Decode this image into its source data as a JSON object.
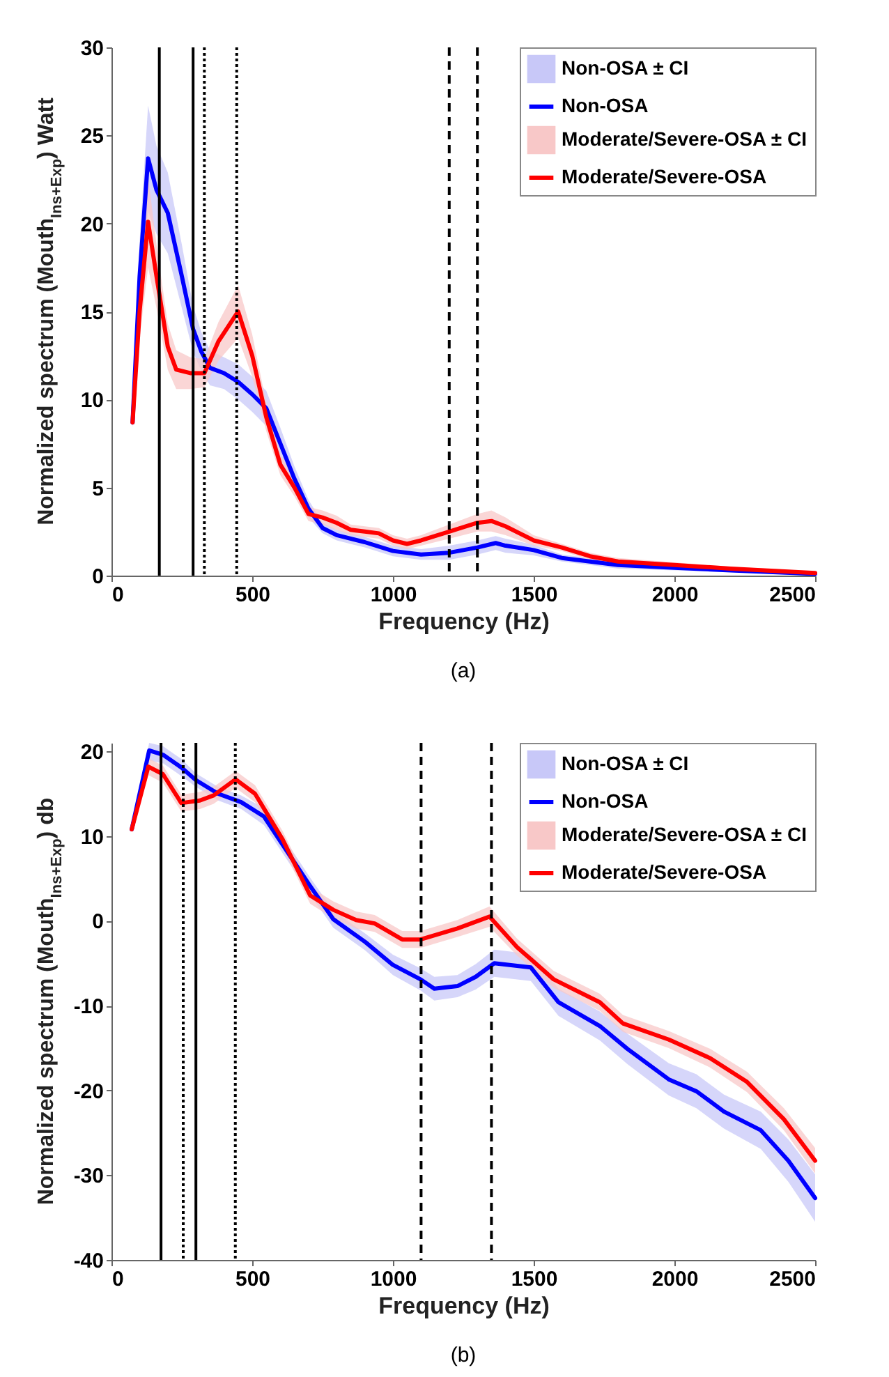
{
  "chart_data": [
    {
      "type": "line",
      "xlabel": "Frequency (Hz)",
      "ylabel": "Normalized spectrum (Mouth$_{Ins+Exp}$) Watt",
      "annotations": [
        "(a)"
      ],
      "xlim": [
        0,
        2500
      ],
      "xticks": [
        0,
        500,
        1000,
        1500,
        2000,
        2500
      ],
      "ylim": [
        0,
        30
      ],
      "yticks": [
        0,
        5,
        10,
        15,
        20,
        25,
        30
      ],
      "grid": false,
      "legend": "top right",
      "series": [
        {
          "name": "Non-OSA ± CI",
          "type": "area",
          "color": "#c8c8f8"
        },
        {
          "name": "Non-OSA",
          "color": "#0000ff",
          "x": [
            75,
            100,
            130,
            160,
            200,
            250,
            290,
            320,
            350,
            400,
            450,
            500,
            550,
            600,
            650,
            700,
            750,
            800,
            900,
            1000,
            1100,
            1200,
            1300,
            1365,
            1400,
            1500,
            1600,
            1700,
            1800,
            2000,
            2200,
            2500
          ],
          "values": [
            8.7,
            17,
            23.7,
            21.9,
            20.6,
            17,
            14,
            12.7,
            11.8,
            11.5,
            11,
            10.3,
            9.5,
            7.5,
            5.5,
            3.8,
            2.7,
            2.3,
            1.9,
            1.4,
            1.2,
            1.3,
            1.6,
            1.85,
            1.7,
            1.45,
            1.0,
            0.8,
            0.6,
            0.45,
            0.3,
            0.1
          ],
          "lower": [
            8.4,
            15,
            20.7,
            19.4,
            18.3,
            15.2,
            12.7,
            11.6,
            10.8,
            10.6,
            10,
            9.3,
            8.5,
            6.6,
            4.8,
            3.3,
            2.4,
            2,
            1.6,
            1.1,
            0.9,
            0.9,
            1.2,
            1.45,
            1.3,
            1.15,
            0.8,
            0.6,
            0.4,
            0.3,
            0.2,
            0
          ],
          "upper": [
            9,
            19,
            26.7,
            24.4,
            22.9,
            18.8,
            15.3,
            13.8,
            12.8,
            12.4,
            12,
            11.3,
            10.5,
            8.4,
            6.2,
            4.3,
            3,
            2.6,
            2.2,
            1.7,
            1.5,
            1.7,
            2,
            2.25,
            2.1,
            1.75,
            1.2,
            1,
            0.8,
            0.6,
            0.4,
            0.2
          ]
        },
        {
          "name": "Moderate/Severe-OSA ± CI",
          "type": "area",
          "color": "#f8c8c8"
        },
        {
          "name": "Moderate/Severe-OSA",
          "color": "#ff0000",
          "x": [
            75,
            100,
            130,
            160,
            200,
            230,
            280,
            330,
            380,
            450,
            500,
            550,
            600,
            650,
            700,
            750,
            800,
            850,
            900,
            950,
            1000,
            1050,
            1100,
            1200,
            1300,
            1350,
            1400,
            1500,
            1600,
            1700,
            1800,
            2000,
            2200,
            2500
          ],
          "values": [
            8.7,
            15,
            20.1,
            17,
            13,
            11.7,
            11.5,
            11.5,
            13.3,
            15,
            12.5,
            9,
            6.3,
            5,
            3.5,
            3.3,
            3,
            2.6,
            2.5,
            2.4,
            2,
            1.8,
            2,
            2.5,
            3,
            3.1,
            2.8,
            2,
            1.6,
            1.1,
            0.8,
            0.6,
            0.4,
            0.15
          ],
          "lower": [
            8.4,
            13.5,
            17.5,
            15.2,
            11.7,
            10.6,
            10.6,
            10.7,
            12.2,
            13.5,
            11.3,
            8.2,
            5.7,
            4.5,
            3.1,
            2.9,
            2.6,
            2.3,
            2.2,
            2.1,
            1.7,
            1.5,
            1.7,
            2.1,
            2.5,
            2.5,
            2.3,
            1.7,
            1.4,
            0.9,
            0.6,
            0.45,
            0.3,
            0.05
          ],
          "upper": [
            9,
            16.5,
            22.7,
            18.8,
            14.3,
            12.8,
            12.4,
            12.3,
            14.4,
            16.5,
            13.7,
            9.8,
            6.9,
            5.5,
            3.9,
            3.7,
            3.4,
            2.9,
            2.8,
            2.7,
            2.3,
            2.1,
            2.3,
            2.9,
            3.5,
            3.7,
            3.3,
            2.3,
            1.8,
            1.3,
            1,
            0.75,
            0.5,
            0.25
          ]
        }
      ],
      "ref_lines": [
        {
          "axis": "x",
          "value": 170,
          "color": "#000000",
          "line_style": "solid"
        },
        {
          "axis": "x",
          "value": 290,
          "color": "#000000",
          "line_style": "solid"
        },
        {
          "axis": "x",
          "value": 330,
          "color": "#000000",
          "line_style": "dotted"
        },
        {
          "axis": "x",
          "value": 445,
          "color": "#000000",
          "line_style": "dotted"
        },
        {
          "axis": "x",
          "value": 1200,
          "color": "#000000",
          "line_style": "dashed"
        },
        {
          "axis": "x",
          "value": 1300,
          "color": "#000000",
          "line_style": "dashed"
        }
      ]
    },
    {
      "type": "line",
      "xlabel": "Frequency (Hz)",
      "ylabel": "Normalized spectrum (Mouth$_{Ins+Exp}$) db",
      "annotations": [
        "(b)"
      ],
      "xlim": [
        0,
        2500
      ],
      "xticks": [
        0,
        500,
        1000,
        1500,
        2000,
        2500
      ],
      "ylim": [
        -40,
        21
      ],
      "yticks": [
        -40,
        -30,
        -20,
        -10,
        0,
        10,
        20
      ],
      "grid": false,
      "legend": "top right",
      "series": [
        {
          "name": "Non-OSA ± CI",
          "type": "area",
          "color": "#c8c8f8"
        },
        {
          "name": "Non-OSA",
          "color": "#0000ff",
          "x": [
            72,
            134,
            183,
            248,
            300,
            379,
            461,
            542,
            608,
            706,
            788,
            902,
            1000,
            1098,
            1147,
            1229,
            1294,
            1360,
            1490,
            1588,
            1735,
            1833,
            1980,
            2078,
            2176,
            2307,
            2405,
            2500
          ],
          "values": [
            10.8,
            20.1,
            19.6,
            18.1,
            16.6,
            15,
            14,
            12.3,
            9,
            4.1,
            0.2,
            -2.5,
            -5.2,
            -6.9,
            -8,
            -7.7,
            -6.6,
            -5,
            -5.5,
            -9.6,
            -12.4,
            -15.1,
            -18.7,
            -20.1,
            -22.5,
            -24.7,
            -28.3,
            -32.7
          ],
          "lower": [
            10.5,
            18.9,
            18.6,
            17.1,
            15.8,
            14.2,
            13.2,
            11.3,
            8,
            3.1,
            -0.8,
            -3.5,
            -6.4,
            -8.2,
            -9.4,
            -9,
            -8.1,
            -6.6,
            -7.1,
            -11.2,
            -14.1,
            -16.9,
            -20.6,
            -22.1,
            -24.5,
            -26.9,
            -30.8,
            -35.5
          ],
          "upper": [
            11.1,
            21,
            20.6,
            19.1,
            17.4,
            15.8,
            14.8,
            13.3,
            10,
            5.1,
            1.2,
            -1.5,
            -4,
            -5.6,
            -6.6,
            -6.4,
            -5.1,
            -3.4,
            -3.9,
            -8,
            -10.7,
            -13.3,
            -16.8,
            -18.1,
            -20.5,
            -22.5,
            -25.8,
            -29.9
          ]
        },
        {
          "name": "Moderate/Severe-OSA ± CI",
          "type": "area",
          "color": "#f8c8c8"
        },
        {
          "name": "Moderate/Severe-OSA",
          "color": "#ff0000",
          "x": [
            72,
            131,
            183,
            248,
            314,
            363,
            441,
            510,
            608,
            706,
            788,
            869,
            935,
            1033,
            1098,
            1229,
            1343,
            1441,
            1571,
            1735,
            1817,
            1980,
            2127,
            2258,
            2389,
            2500
          ],
          "values": [
            10.8,
            18.2,
            17.3,
            13.9,
            14.2,
            14.8,
            16.7,
            15,
            9.6,
            3,
            1.3,
            0.1,
            -0.3,
            -2.2,
            -2.2,
            -0.9,
            0.5,
            -3.1,
            -6.9,
            -9.6,
            -12.1,
            -14,
            -16.2,
            -19,
            -23.4,
            -28.3
          ],
          "lower": [
            10.5,
            17.2,
            16.3,
            12.9,
            13.2,
            13.8,
            15.7,
            14,
            8.6,
            2,
            0.3,
            -0.9,
            -1.3,
            -3.2,
            -3.2,
            -1.9,
            -0.7,
            -4.1,
            -7.9,
            -10.6,
            -13.1,
            -15,
            -17.3,
            -20.2,
            -24.7,
            -29.8
          ],
          "upper": [
            11.1,
            19.2,
            18.3,
            14.9,
            15.2,
            15.8,
            17.7,
            16,
            10.6,
            4,
            2.3,
            1.1,
            0.7,
            -1.2,
            -1.2,
            0.1,
            1.7,
            -2.1,
            -5.9,
            -8.6,
            -11.1,
            -13,
            -15.1,
            -17.8,
            -22.1,
            -26.8
          ]
        }
      ],
      "ref_lines": [
        {
          "axis": "x",
          "value": 176,
          "color": "#000000",
          "line_style": "solid"
        },
        {
          "axis": "x",
          "value": 255,
          "color": "#000000",
          "line_style": "dotted"
        },
        {
          "axis": "x",
          "value": 300,
          "color": "#000000",
          "line_style": "solid"
        },
        {
          "axis": "x",
          "value": 440,
          "color": "#000000",
          "line_style": "dotted"
        },
        {
          "axis": "x",
          "value": 1100,
          "color": "#000000",
          "line_style": "dashed"
        },
        {
          "axis": "x",
          "value": 1350,
          "color": "#000000",
          "line_style": "dashed"
        }
      ]
    }
  ]
}
